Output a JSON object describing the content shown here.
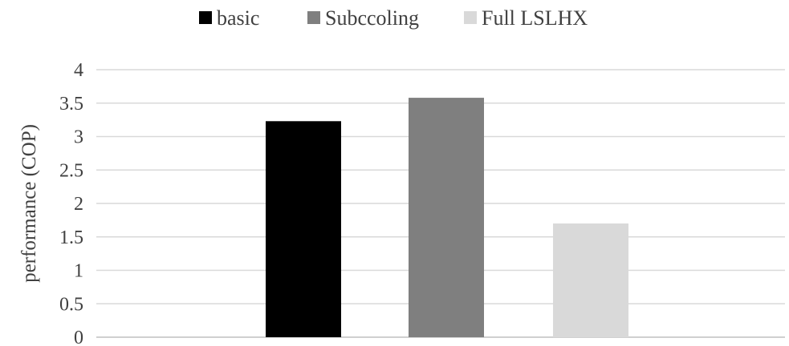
{
  "chart_data": {
    "type": "bar",
    "title": "",
    "xlabel": "",
    "ylabel": "performance (COP)",
    "ylim": [
      0,
      4
    ],
    "yticks": [
      "0",
      "0.5",
      "1",
      "1.5",
      "2",
      "2.5",
      "3",
      "3.5",
      "4"
    ],
    "grid": true,
    "legend_position": "top",
    "series": [
      {
        "name": "basic",
        "value": 3.23,
        "color": "#000000"
      },
      {
        "name": "Subccoling",
        "value": 3.58,
        "color": "#7f7f7f"
      },
      {
        "name": "Full LSLHX",
        "value": 1.7,
        "color": "#d9d9d9"
      }
    ]
  }
}
